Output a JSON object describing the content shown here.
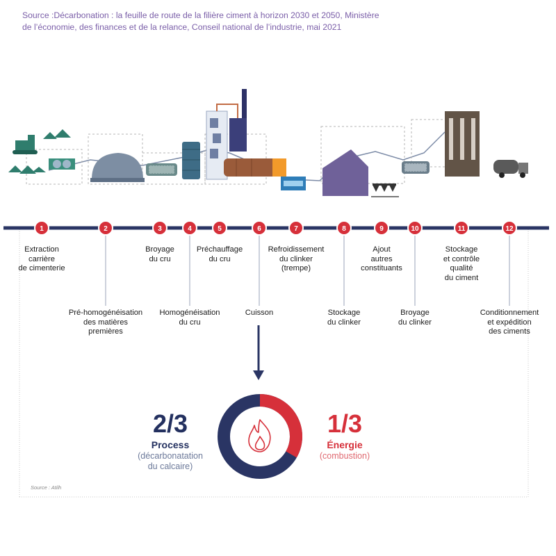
{
  "source_note": "Source :Décarbonation : la feuille de route de la filière ciment à horizon 2030 et 2050, Ministère de l’économie, des finances et de la relance, Conseil national de l’industrie, mai 2021",
  "colors": {
    "navy": "#2a3564",
    "red": "#d6303a",
    "grey_line": "#9aa3b8",
    "purple": "#6f6199"
  },
  "steps": [
    {
      "number": "1",
      "label": [
        "Extraction",
        "carrière",
        "de cimenterie"
      ]
    },
    {
      "number": "2",
      "label": [
        "Pré-homogénéisation",
        "des matières",
        "premières"
      ]
    },
    {
      "number": "3",
      "label": [
        "Broyage",
        "du cru"
      ]
    },
    {
      "number": "4",
      "label": [
        "Homogénéisation",
        "du cru"
      ]
    },
    {
      "number": "5",
      "label": [
        "Préchauffage",
        "du cru"
      ]
    },
    {
      "number": "6",
      "label": [
        "Cuisson"
      ]
    },
    {
      "number": "7",
      "label": [
        "Refroidissement",
        "du clinker",
        "(trempe)"
      ]
    },
    {
      "number": "8",
      "label": [
        "Stockage",
        "du clinker"
      ]
    },
    {
      "number": "9",
      "label": [
        "Ajout",
        "autres",
        "constituants"
      ]
    },
    {
      "number": "10",
      "label": [
        "Broyage",
        "du clinker"
      ]
    },
    {
      "number": "11",
      "label": [
        "Stockage",
        "et contrôle",
        "qualité",
        "du ciment"
      ]
    },
    {
      "number": "12",
      "label": [
        "Conditionnement",
        "et expédition",
        "des ciments"
      ]
    }
  ],
  "emissions": {
    "process": {
      "fraction": "2/3",
      "name": "Process",
      "detail": [
        "(décarbonatation",
        "du calcaire)"
      ],
      "share": 0.667
    },
    "energy": {
      "fraction": "1/3",
      "name": "Énergie",
      "detail": [
        "(combustion)"
      ],
      "share": 0.333
    },
    "center_icon": "flame-icon"
  },
  "source_small": "Source : Atilh"
}
